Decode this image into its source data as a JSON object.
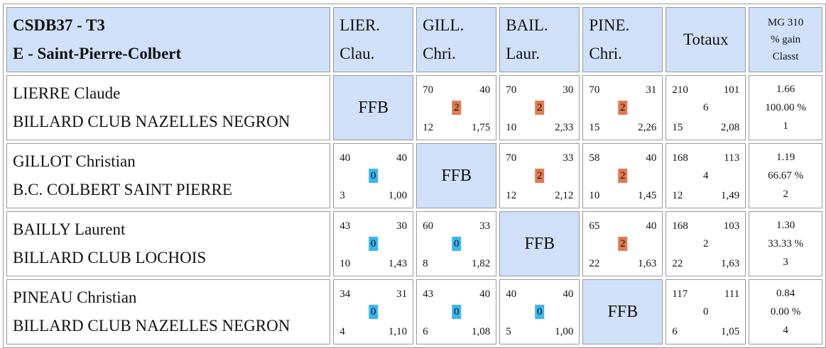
{
  "header": {
    "title_line1": "CSDB37 - T3",
    "title_line2": "E - Saint-Pierre-Colbert",
    "columns": [
      {
        "line1": "LIER.",
        "line2": "Clau."
      },
      {
        "line1": "GILL.",
        "line2": "Chri."
      },
      {
        "line1": "BAIL.",
        "line2": "Laur."
      },
      {
        "line1": "PINE.",
        "line2": "Chri."
      }
    ],
    "totals": "Totaux",
    "mg_line1": "MG 310",
    "mg_line2": "% gain",
    "mg_line3": "Classt"
  },
  "colors": {
    "header_bg": "#cfe0f8",
    "win_badge": "#e07a52",
    "loss_badge": "#3db4ee"
  },
  "rows": [
    {
      "name": "LIERRE Claude",
      "club": "BILLARD CLUB NAZELLES NEGRON",
      "cells": [
        {
          "ffb": "FFB"
        },
        {
          "tl": "70",
          "tr": "40",
          "mid": "2",
          "bl": "12",
          "br": "1,75",
          "result": "win"
        },
        {
          "tl": "70",
          "tr": "30",
          "mid": "2",
          "bl": "10",
          "br": "2,33",
          "result": "win"
        },
        {
          "tl": "70",
          "tr": "31",
          "mid": "2",
          "bl": "15",
          "br": "2,26",
          "result": "win"
        }
      ],
      "totals": {
        "tl": "210",
        "tr": "101",
        "mid": "6",
        "bl": "15",
        "br": "2,08"
      },
      "stats": {
        "mg": "1.66",
        "pct": "100.00 %",
        "rank": "1"
      }
    },
    {
      "name": "GILLOT Christian",
      "club": "B.C. COLBERT SAINT PIERRE",
      "cells": [
        {
          "tl": "40",
          "tr": "40",
          "mid": "0",
          "bl": "3",
          "br": "1,00",
          "result": "loss"
        },
        {
          "ffb": "FFB"
        },
        {
          "tl": "70",
          "tr": "33",
          "mid": "2",
          "bl": "12",
          "br": "2,12",
          "result": "win"
        },
        {
          "tl": "58",
          "tr": "40",
          "mid": "2",
          "bl": "10",
          "br": "1,45",
          "result": "win"
        }
      ],
      "totals": {
        "tl": "168",
        "tr": "113",
        "mid": "4",
        "bl": "12",
        "br": "1,49"
      },
      "stats": {
        "mg": "1.19",
        "pct": "66.67 %",
        "rank": "2"
      }
    },
    {
      "name": "BAILLY Laurent",
      "club": "BILLARD CLUB LOCHOIS",
      "cells": [
        {
          "tl": "43",
          "tr": "30",
          "mid": "0",
          "bl": "10",
          "br": "1,43",
          "result": "loss"
        },
        {
          "tl": "60",
          "tr": "33",
          "mid": "0",
          "bl": "8",
          "br": "1,82",
          "result": "loss"
        },
        {
          "ffb": "FFB"
        },
        {
          "tl": "65",
          "tr": "40",
          "mid": "2",
          "bl": "22",
          "br": "1,63",
          "result": "win"
        }
      ],
      "totals": {
        "tl": "168",
        "tr": "103",
        "mid": "2",
        "bl": "22",
        "br": "1,63"
      },
      "stats": {
        "mg": "1.30",
        "pct": "33.33 %",
        "rank": "3"
      }
    },
    {
      "name": "PINEAU Christian",
      "club": "BILLARD CLUB NAZELLES NEGRON",
      "cells": [
        {
          "tl": "34",
          "tr": "31",
          "mid": "0",
          "bl": "4",
          "br": "1,10",
          "result": "loss"
        },
        {
          "tl": "43",
          "tr": "40",
          "mid": "0",
          "bl": "6",
          "br": "1,08",
          "result": "loss"
        },
        {
          "tl": "40",
          "tr": "40",
          "mid": "0",
          "bl": "5",
          "br": "1,00",
          "result": "loss"
        },
        {
          "ffb": "FFB"
        }
      ],
      "totals": {
        "tl": "117",
        "tr": "111",
        "mid": "0",
        "bl": "6",
        "br": "1,05"
      },
      "stats": {
        "mg": "0.84",
        "pct": "0.00 %",
        "rank": "4"
      }
    }
  ]
}
